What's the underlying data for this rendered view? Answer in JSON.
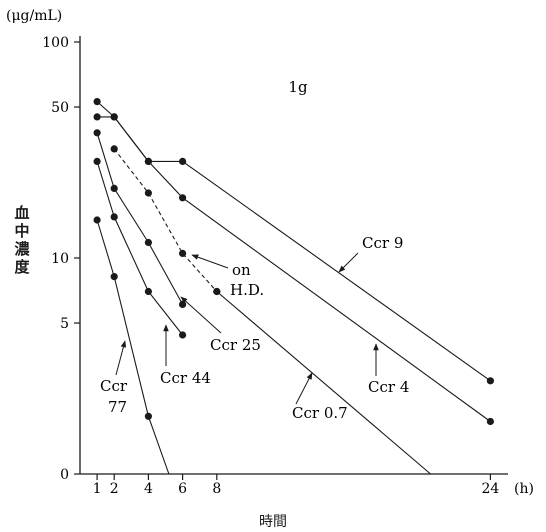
{
  "chart_data": {
    "type": "line",
    "title": "1g",
    "ylabel": "血中濃度",
    "yunit": "(μg/mL)",
    "xlabel": "時間",
    "xunit": "(h)",
    "yscale": "log",
    "yticks": [
      {
        "value": 100,
        "label": "100"
      },
      {
        "value": 50,
        "label": "50"
      },
      {
        "value": 10,
        "label": "10"
      },
      {
        "value": 5,
        "label": "5"
      },
      {
        "value": 1,
        "label": "0"
      }
    ],
    "xticks": [
      1,
      2,
      4,
      6,
      8,
      24
    ],
    "xlim": [
      0,
      26
    ],
    "ylim": [
      1,
      100
    ],
    "grid": false,
    "legend": "none",
    "series": [
      {
        "name": "Ccr 9",
        "points": [
          [
            1,
            53
          ],
          [
            2,
            45
          ],
          [
            4,
            28
          ],
          [
            6,
            28
          ],
          [
            24,
            2.7
          ]
        ]
      },
      {
        "name": "Ccr 4",
        "points": [
          [
            1,
            45
          ],
          [
            2,
            45
          ],
          [
            4,
            28
          ],
          [
            6,
            19
          ],
          [
            24,
            1.75
          ]
        ]
      },
      {
        "name": "Ccr 25",
        "points": [
          [
            1,
            38
          ],
          [
            2,
            21
          ],
          [
            4,
            11.8
          ],
          [
            6,
            6.1
          ]
        ]
      },
      {
        "name": "Ccr 44",
        "points": [
          [
            1,
            28
          ],
          [
            2,
            15.5
          ],
          [
            4,
            7
          ],
          [
            6,
            4.4
          ]
        ]
      },
      {
        "name": "Ccr 77",
        "points": [
          [
            1,
            15
          ],
          [
            2,
            8.2
          ],
          [
            4,
            1.85
          ],
          [
            5.2,
            1
          ]
        ]
      },
      {
        "name": "on H.D.",
        "style": "dashed",
        "points": [
          [
            2,
            32
          ],
          [
            4,
            20
          ],
          [
            6,
            10.5
          ],
          [
            8,
            7
          ]
        ]
      },
      {
        "name": "Ccr 0.7",
        "points": [
          [
            8,
            7
          ],
          [
            20.5,
            1
          ]
        ]
      }
    ],
    "annotations": [
      {
        "text": "Ccr 9"
      },
      {
        "text": "on"
      },
      {
        "text": "H.D."
      },
      {
        "text": "Ccr 4"
      },
      {
        "text": "Ccr 25"
      },
      {
        "text": "Ccr 44"
      },
      {
        "text": "Ccr 0.7"
      },
      {
        "text": "Ccr"
      },
      {
        "text": "77"
      }
    ]
  }
}
